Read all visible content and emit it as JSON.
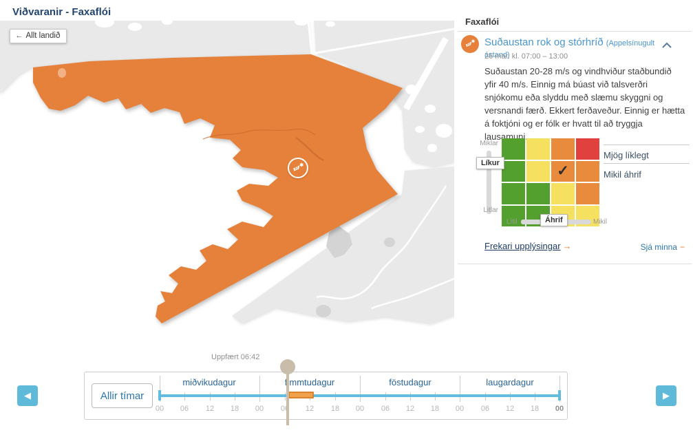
{
  "page": {
    "title": "Viðvaranir - Faxaflói"
  },
  "map": {
    "back_button": "Allt landið",
    "back_arrow": "←",
    "warning_region": "Faxaflói",
    "warning_icon": "windsock-snowflake",
    "region_color": "#e6813b",
    "land_color": "#e9e9e9"
  },
  "panel": {
    "region": "Faxaflói",
    "warning": {
      "title": "Suðaustan rok og stórhríð",
      "status": "(Appelsínugult ástand)",
      "period": "26 mar. kl. 07:00 – 13:00",
      "description": "Suðaustan 20-28 m/s og vindhviður staðbundið yfir 40 m/s. Einnig má búast við talsverðri snjókomu eða slyddu með slæmu skyggni og versnandi færð. Ekkert ferðaveður. Einnig er hætta á foktjóni og er fólk er hvatt til að tryggja lausamuni."
    },
    "matrix": {
      "cells": [
        [
          "green",
          "yellow",
          "orange",
          "red"
        ],
        [
          "green",
          "yellow",
          "orange",
          "orange"
        ],
        [
          "green",
          "green",
          "yellow",
          "orange"
        ],
        [
          "green",
          "green",
          "yellow",
          "yellow"
        ]
      ],
      "selected": {
        "row": 1,
        "col": 2
      },
      "check_glyph": "✓",
      "colors": {
        "green": "#53a02e",
        "yellow": "#f5e15f",
        "orange": "#e98b3d",
        "red": "#e0413f"
      },
      "y_axis": {
        "top": "Miklar",
        "label": "Líkur",
        "bottom": "Litlar"
      },
      "x_axis": {
        "left": "Lítil",
        "label": "Áhrif",
        "right": "Mikil"
      },
      "likelihood_text": "Mjög líklegt",
      "impact_text": "Mikil áhrif"
    },
    "links": {
      "more_info": "Frekari upplýsingar",
      "more_arrow": "→",
      "collapse": "Sjá minna",
      "collapse_glyph": "−"
    }
  },
  "timeline": {
    "updated": "Uppfært 06:42",
    "all_times": "Allir tímar",
    "days": [
      "miðvikudagur",
      "fimmtudagur",
      "föstudagur",
      "laugardagur"
    ],
    "hours": [
      "00",
      "06",
      "12",
      "18",
      "00",
      "06",
      "12",
      "18",
      "00",
      "06",
      "12",
      "18",
      "00",
      "06",
      "12",
      "18",
      "00"
    ],
    "track_color": "#62bcdf",
    "warning_segment": {
      "day": "fimmtudagur",
      "from": "07:00",
      "to": "13:00",
      "color": "#efa14d"
    }
  }
}
